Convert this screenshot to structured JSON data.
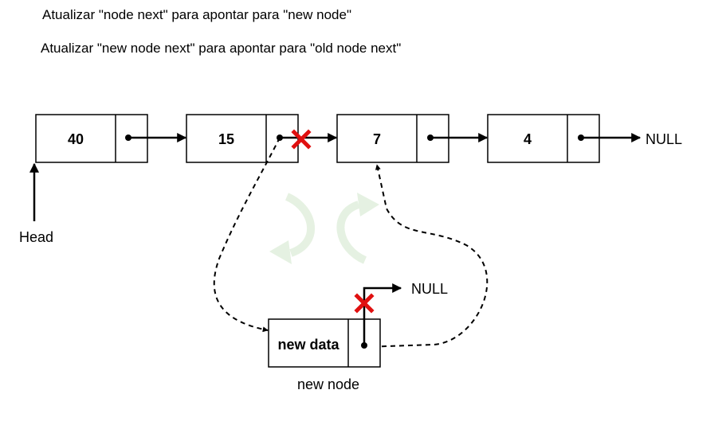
{
  "captions": {
    "line1": "Atualizar \"node next\" para apontar para \"new node\"",
    "line2": "Atualizar \"new node next\" para apontar para \"old node next\""
  },
  "list": {
    "nodes": [
      {
        "value": "40"
      },
      {
        "value": "15"
      },
      {
        "value": "7"
      },
      {
        "value": "4"
      }
    ],
    "null_label": "NULL",
    "head_label": "Head"
  },
  "new_node": {
    "data_label": "new data",
    "caption": "new node",
    "old_next_label": "NULL"
  },
  "colors": {
    "line": "#000000",
    "cross": "#e01010",
    "rotate_arrows": "#e3f0df"
  },
  "icons": [
    "removed-link-cross-icon",
    "rotate-left-icon",
    "rotate-right-icon"
  ]
}
